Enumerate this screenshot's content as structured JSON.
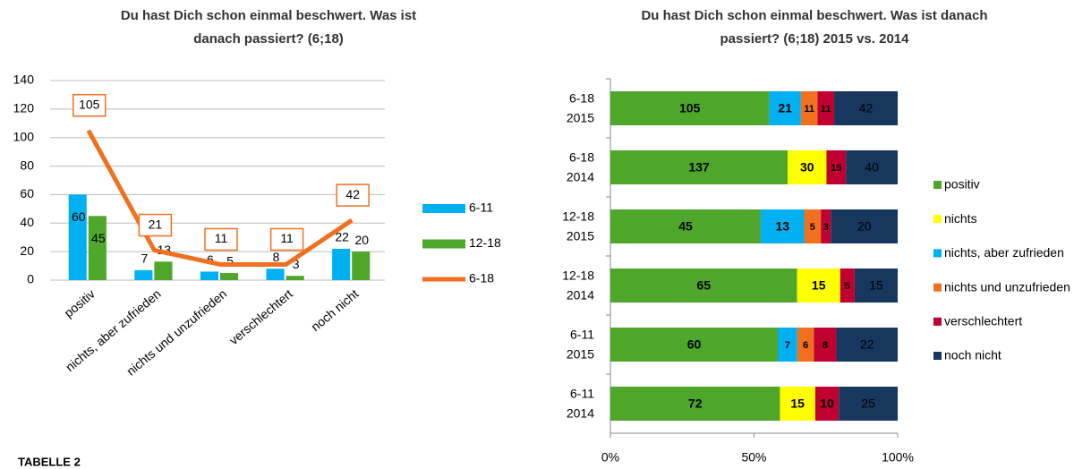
{
  "chart_data": [
    {
      "type": "bar",
      "title": [
        "Du hast Dich schon einmal beschwert. Was ist",
        "danach passiert? (6;18)"
      ],
      "categories": [
        "positiv",
        "nichts, aber zufrieden",
        "nichts und unzufrieden",
        "verschlechtert",
        "noch nicht"
      ],
      "series": [
        {
          "name": "6-11",
          "color": "#00b0f0",
          "values": [
            60,
            7,
            6,
            8,
            22
          ]
        },
        {
          "name": "12-18",
          "color": "#4ea72a",
          "values": [
            45,
            13,
            5,
            3,
            20
          ]
        },
        {
          "name": "6-18",
          "color": "#f07020",
          "type": "line",
          "values": [
            105,
            21,
            11,
            11,
            42
          ]
        }
      ],
      "ylim": [
        0,
        140
      ],
      "yticks": [
        0,
        20,
        40,
        60,
        80,
        100,
        120,
        140
      ],
      "grid": true,
      "legend": "right"
    },
    {
      "type": "stacked_bar_100",
      "title": [
        "Du hast Dich schon einmal beschwert. Was ist danach",
        "passiert? (6;18) 2015 vs. 2014"
      ],
      "categories": [
        [
          "6-18",
          "2015"
        ],
        [
          "6-18",
          "2014"
        ],
        [
          "12-18",
          "2015"
        ],
        [
          "12-18",
          "2014"
        ],
        [
          "6-11",
          "2015"
        ],
        [
          "6-11",
          "2014"
        ]
      ],
      "series": [
        {
          "name": "positiv",
          "color": "#4ea72a",
          "values": [
            105,
            137,
            45,
            65,
            60,
            72
          ]
        },
        {
          "name": "nichts",
          "color": "#ffff00",
          "values": [
            null,
            30,
            null,
            15,
            null,
            15
          ]
        },
        {
          "name": "nichts, aber zufrieden",
          "color": "#00b0f0",
          "values": [
            21,
            null,
            13,
            null,
            7,
            null
          ]
        },
        {
          "name": "nichts und unzufrieden",
          "color": "#f07020",
          "values": [
            11,
            null,
            5,
            null,
            6,
            null
          ]
        },
        {
          "name": "verschlechtert",
          "color": "#c00030",
          "values": [
            11,
            15,
            3,
            5,
            8,
            10
          ]
        },
        {
          "name": "noch nicht",
          "color": "#17375e",
          "values": [
            42,
            40,
            20,
            15,
            22,
            25
          ]
        }
      ],
      "xlim": [
        0,
        100
      ],
      "xticks": [
        {
          "value": 0,
          "label": "0%"
        },
        {
          "value": 50,
          "label": "50%"
        },
        {
          "value": 100,
          "label": "100%"
        }
      ],
      "legend": "right"
    }
  ],
  "footer": "TABELLE 2"
}
